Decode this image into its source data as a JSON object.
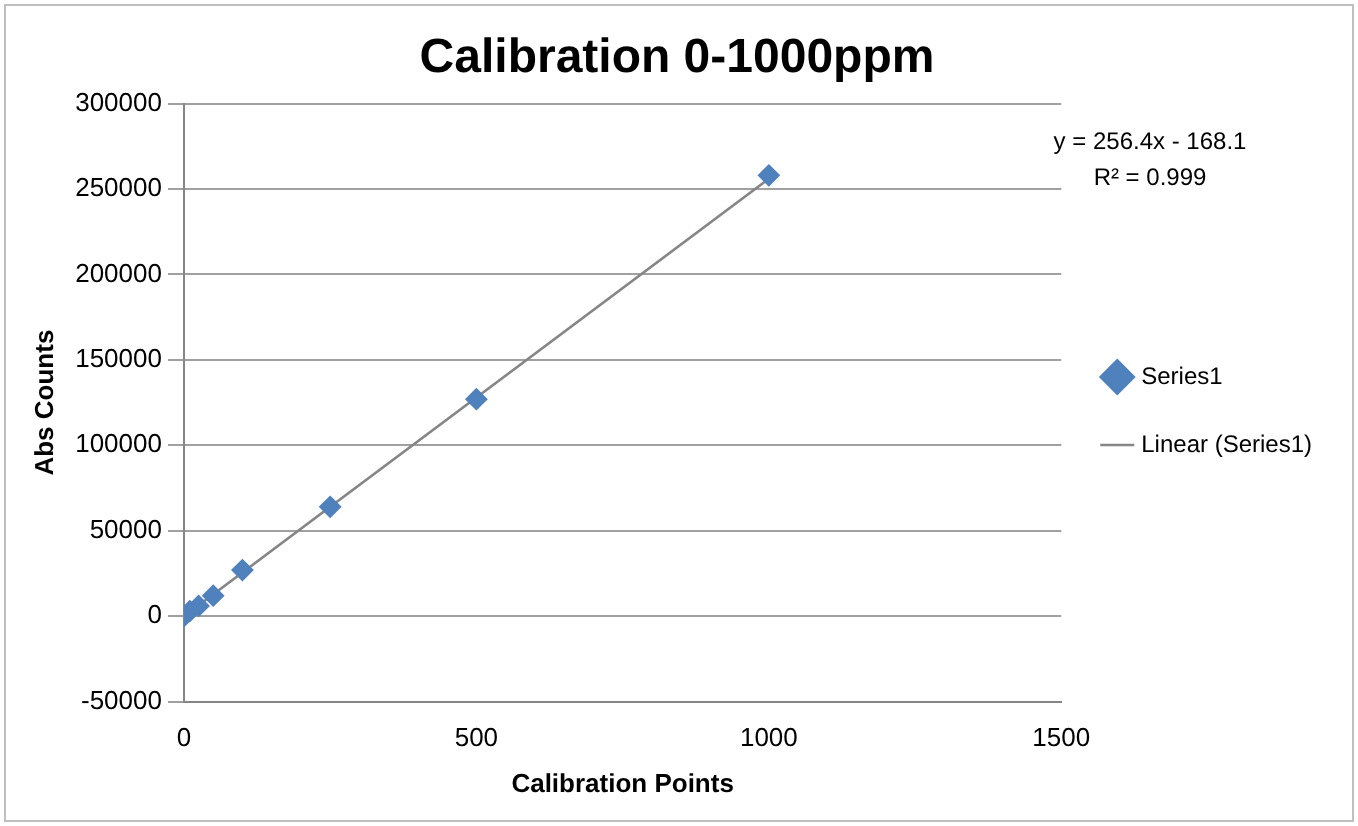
{
  "chart_data": {
    "type": "scatter",
    "title": "Calibration 0-1000ppm",
    "xlabel": "Calibration Points",
    "ylabel": "Abs Counts",
    "x": [
      0,
      10,
      25,
      50,
      100,
      250,
      500,
      1000
    ],
    "series": [
      {
        "name": "Series1",
        "color": "#4f81bd",
        "marker": "diamond",
        "values": [
          0,
          3000,
          6000,
          12000,
          27000,
          64000,
          127000,
          258000
        ]
      },
      {
        "name": "Linear (Series1)",
        "type": "line",
        "color": "#868686",
        "marker": "none",
        "x": [
          0,
          1000
        ],
        "values": [
          0,
          256000
        ]
      }
    ],
    "annotations": [
      "y = 256.4x - 168.1",
      "R² = 0.999"
    ],
    "xlim": [
      0,
      1500
    ],
    "xticks": [
      0,
      500,
      1000,
      1500
    ],
    "ylim": [
      -50000,
      300000
    ],
    "yticks": [
      -50000,
      0,
      50000,
      100000,
      150000,
      200000,
      250000,
      300000
    ],
    "grid": "y",
    "legend": "right"
  }
}
